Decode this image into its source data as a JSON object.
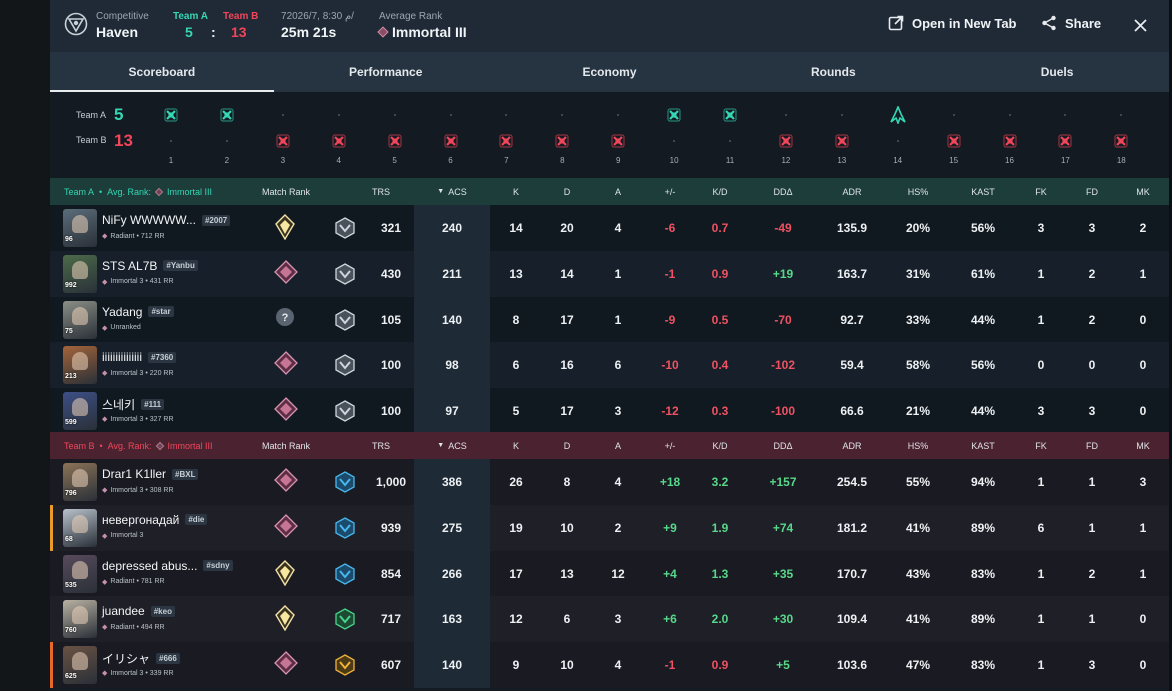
{
  "header": {
    "mode": "Competitive",
    "map": "Haven",
    "team_a_label": "Team A",
    "team_b_label": "Team B",
    "team_a_score": "5",
    "score_sep": ":",
    "team_b_score": "13",
    "date": "7م 8:30 ,2026/7/",
    "duration": "25m 21s",
    "avg_rank_label": "Average Rank",
    "avg_rank": "Immortal III",
    "open_new_tab": "Open in New Tab",
    "share": "Share"
  },
  "tabs": [
    "Scoreboard",
    "Performance",
    "Economy",
    "Rounds",
    "Duels"
  ],
  "timeline": {
    "team_a_label": "Team A",
    "team_a_score": "5",
    "team_b_label": "Team B",
    "team_b_score": "13",
    "round_numbers": [
      "1",
      "2",
      "3",
      "4",
      "5",
      "6",
      "7",
      "8",
      "9",
      "10",
      "11",
      "12",
      "13",
      "14",
      "15",
      "16",
      "17",
      "18"
    ],
    "round_winners": [
      "A",
      "A",
      "B",
      "B",
      "B",
      "B",
      "B",
      "B",
      "B",
      "A",
      "A",
      "B",
      "B",
      "A",
      "B",
      "B",
      "B",
      "B"
    ],
    "round_icons": [
      "x",
      "x",
      "x",
      "x",
      "x",
      "x",
      "x",
      "x",
      "x",
      "x",
      "x",
      "x",
      "x",
      "spike",
      "x",
      "x",
      "x",
      "x"
    ]
  },
  "columns": [
    "Match Rank",
    "TRS",
    "ACS",
    "K",
    "D",
    "A",
    "+/-",
    "K/D",
    "DDΔ",
    "ADR",
    "HS%",
    "KAST",
    "FK",
    "FD",
    "MK"
  ],
  "team_a": {
    "label": "Team A",
    "bullet": "•",
    "avg_rank_label": "Avg. Rank:",
    "avg_rank": "Immortal III",
    "players": [
      {
        "name": "NiFy WWWWW...",
        "tag": "#2007",
        "level": "96",
        "rank": "Radiant • 712 RR",
        "match_rank": "radiant",
        "trs_icon": "silver",
        "trs": "321",
        "acs": "240",
        "k": "14",
        "d": "20",
        "a": "4",
        "pm": "-6",
        "kd": "0.7",
        "dd": "-49",
        "adr": "135.9",
        "hs": "20%",
        "kast": "56%",
        "fk": "3",
        "fd": "3",
        "mk": "2"
      },
      {
        "name": "STS AL7B",
        "tag": "#Yanbu",
        "level": "992",
        "rank": "Immortal 3 • 431 RR",
        "match_rank": "immortal",
        "trs_icon": "silver",
        "trs": "430",
        "acs": "211",
        "k": "13",
        "d": "14",
        "a": "1",
        "pm": "-1",
        "kd": "0.9",
        "dd": "+19",
        "adr": "163.7",
        "hs": "31%",
        "kast": "61%",
        "fk": "1",
        "fd": "2",
        "mk": "1"
      },
      {
        "name": "Yadang",
        "tag": "#star",
        "level": "75",
        "rank": "Unranked",
        "match_rank": "unranked",
        "trs_icon": "silver",
        "trs": "105",
        "acs": "140",
        "k": "8",
        "d": "17",
        "a": "1",
        "pm": "-9",
        "kd": "0.5",
        "dd": "-70",
        "adr": "92.7",
        "hs": "33%",
        "kast": "44%",
        "fk": "1",
        "fd": "2",
        "mk": "0"
      },
      {
        "name": "iiiiiiiiiiiiiii",
        "tag": "#7360",
        "level": "213",
        "rank": "Immortal 3 • 220 RR",
        "match_rank": "immortal",
        "trs_icon": "silver",
        "trs": "100",
        "acs": "98",
        "k": "6",
        "d": "16",
        "a": "6",
        "pm": "-10",
        "kd": "0.4",
        "dd": "-102",
        "adr": "59.4",
        "hs": "58%",
        "kast": "56%",
        "fk": "0",
        "fd": "0",
        "mk": "0"
      },
      {
        "name": "스네키",
        "tag": "#111",
        "level": "599",
        "rank": "Immortal 3 • 327 RR",
        "match_rank": "immortal",
        "trs_icon": "silver",
        "trs": "100",
        "acs": "97",
        "k": "5",
        "d": "17",
        "a": "3",
        "pm": "-12",
        "kd": "0.3",
        "dd": "-100",
        "adr": "66.6",
        "hs": "21%",
        "kast": "44%",
        "fk": "3",
        "fd": "3",
        "mk": "0"
      }
    ]
  },
  "team_b": {
    "label": "Team B",
    "bullet": "•",
    "avg_rank_label": "Avg. Rank:",
    "avg_rank": "Immortal III",
    "players": [
      {
        "name": "Drar1 K1ller",
        "tag": "#BXL",
        "level": "796",
        "rank": "Immortal 3 • 308 RR",
        "match_rank": "immortal",
        "trs_icon": "blue",
        "trs": "1,000",
        "acs": "386",
        "k": "26",
        "d": "8",
        "a": "4",
        "pm": "+18",
        "kd": "3.2",
        "dd": "+157",
        "adr": "254.5",
        "hs": "55%",
        "kast": "94%",
        "fk": "1",
        "fd": "1",
        "mk": "3"
      },
      {
        "name": "невергонадай",
        "tag": "#die",
        "level": "68",
        "rank": "Immortal 3",
        "match_rank": "immortal",
        "trs_icon": "blue",
        "trs": "939",
        "acs": "275",
        "k": "19",
        "d": "10",
        "a": "2",
        "pm": "+9",
        "kd": "1.9",
        "dd": "+74",
        "adr": "181.2",
        "hs": "41%",
        "kast": "89%",
        "fk": "6",
        "fd": "1",
        "mk": "1"
      },
      {
        "name": "depressed abus...",
        "tag": "#sdny",
        "level": "535",
        "rank": "Radiant • 781 RR",
        "match_rank": "radiant",
        "trs_icon": "blue",
        "trs": "854",
        "acs": "266",
        "k": "17",
        "d": "13",
        "a": "12",
        "pm": "+4",
        "kd": "1.3",
        "dd": "+35",
        "adr": "170.7",
        "hs": "43%",
        "kast": "83%",
        "fk": "1",
        "fd": "2",
        "mk": "1"
      },
      {
        "name": "juandee",
        "tag": "#keo",
        "level": "760",
        "rank": "Radiant • 494 RR",
        "match_rank": "radiant",
        "trs_icon": "green",
        "trs": "717",
        "acs": "163",
        "k": "12",
        "d": "6",
        "a": "3",
        "pm": "+6",
        "kd": "2.0",
        "dd": "+30",
        "adr": "109.4",
        "hs": "41%",
        "kast": "89%",
        "fk": "1",
        "fd": "1",
        "mk": "0"
      },
      {
        "name": "イリシャ",
        "tag": "#666",
        "level": "625",
        "rank": "Immortal 3 • 339 RR",
        "match_rank": "immortal",
        "trs_icon": "gold",
        "trs": "607",
        "acs": "140",
        "k": "9",
        "d": "10",
        "a": "4",
        "pm": "-1",
        "kd": "0.9",
        "dd": "+5",
        "adr": "103.6",
        "hs": "47%",
        "kast": "83%",
        "fk": "1",
        "fd": "3",
        "mk": "0"
      }
    ]
  },
  "colors": {
    "team_a": "#35d6b4",
    "team_b": "#f0455a",
    "positive": "#57d88a",
    "negative": "#ef5262",
    "team_a_header": "#1c3d39",
    "team_b_header": "#4b2330"
  }
}
